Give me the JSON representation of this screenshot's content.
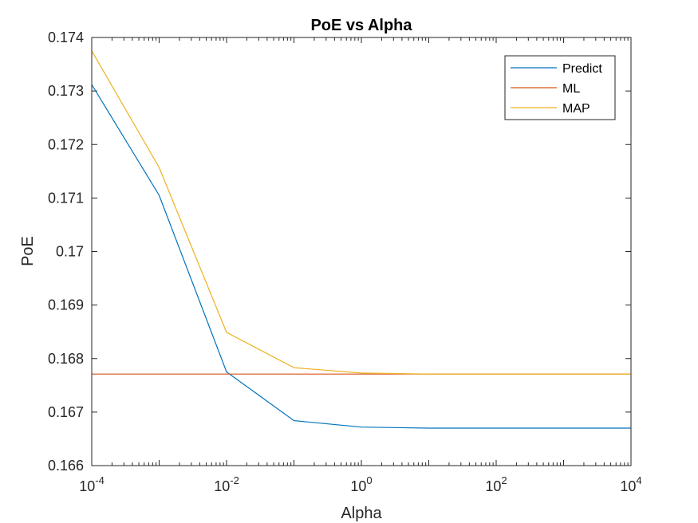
{
  "chart_data": {
    "type": "line",
    "title": "PoE vs Alpha",
    "xlabel": "Alpha",
    "ylabel": "PoE",
    "xscale": "log",
    "xlim": [
      0.0001,
      10000
    ],
    "ylim": [
      0.166,
      0.174
    ],
    "x": [
      0.0001,
      0.001,
      0.01,
      0.1,
      1,
      10,
      100,
      1000,
      10000
    ],
    "series": [
      {
        "name": "Predict",
        "color": "#0072BD",
        "values": [
          0.17312,
          0.17105,
          0.16775,
          0.16684,
          0.16672,
          0.1667,
          0.1667,
          0.1667,
          0.1667
        ]
      },
      {
        "name": "ML",
        "color": "#D95319",
        "values": [
          0.16771,
          0.16771,
          0.16771,
          0.16771,
          0.16771,
          0.16771,
          0.16771,
          0.16771,
          0.16771
        ]
      },
      {
        "name": "MAP",
        "color": "#EDB120",
        "values": [
          0.17375,
          0.17157,
          0.16849,
          0.16783,
          0.16773,
          0.16771,
          0.16771,
          0.16771,
          0.16771
        ]
      }
    ],
    "xticks": [
      {
        "base": "10",
        "exp": "-4",
        "value": 0.0001
      },
      {
        "base": "10",
        "exp": "-2",
        "value": 0.01
      },
      {
        "base": "10",
        "exp": "0",
        "value": 1
      },
      {
        "base": "10",
        "exp": "2",
        "value": 100
      },
      {
        "base": "10",
        "exp": "4",
        "value": 10000
      }
    ],
    "yticks": [
      "0.166",
      "0.167",
      "0.168",
      "0.169",
      "0.17",
      "0.171",
      "0.172",
      "0.173",
      "0.174"
    ],
    "legend_position": "top-right",
    "grid": false
  }
}
